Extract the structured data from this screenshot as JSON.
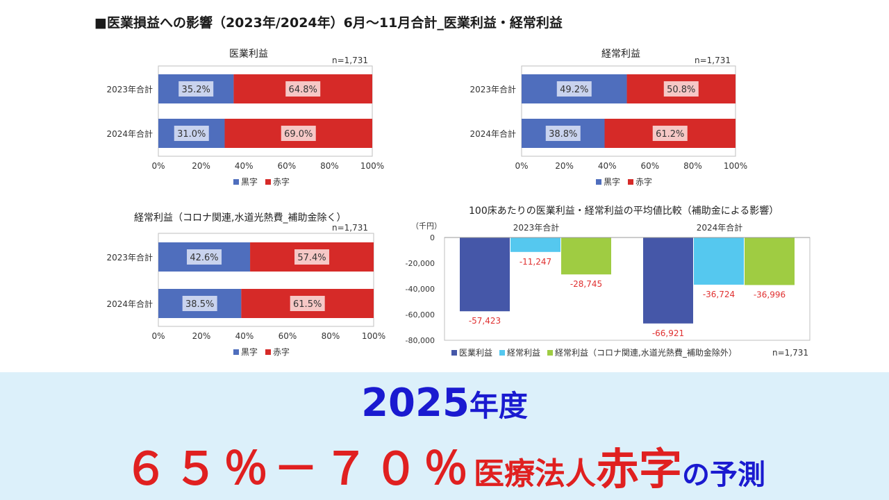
{
  "header": {
    "title": "■医業損益への影響（2023年/2024年）6月～11月合計_医業利益・経常利益"
  },
  "colors": {
    "black": "#4f6ebd",
    "red": "#d62a28",
    "blue": "#4557a8",
    "cyan": "#55c8ef",
    "green": "#9fcc42",
    "banner_bg": "#dcf0fa"
  },
  "chart_data": [
    {
      "type": "bar",
      "title": "医業利益",
      "note": "n=1,731",
      "categories": [
        "2023年合計",
        "2024年合計"
      ],
      "series": [
        {
          "name": "黒字",
          "values": [
            35.2,
            31.0
          ]
        },
        {
          "name": "赤字",
          "values": [
            64.8,
            69.0
          ]
        }
      ],
      "xticks": [
        "0%",
        "20%",
        "40%",
        "60%",
        "80%",
        "100%"
      ],
      "xlim": [
        0,
        100
      ],
      "legend": "bottom"
    },
    {
      "type": "bar",
      "title": "経常利益",
      "note": "n=1,731",
      "categories": [
        "2023年合計",
        "2024年合計"
      ],
      "series": [
        {
          "name": "黒字",
          "values": [
            49.2,
            38.8
          ]
        },
        {
          "name": "赤字",
          "values": [
            50.8,
            61.2
          ]
        }
      ],
      "xticks": [
        "0%",
        "20%",
        "40%",
        "60%",
        "80%",
        "100%"
      ],
      "xlim": [
        0,
        100
      ],
      "legend": "bottom"
    },
    {
      "type": "bar",
      "title": "経常利益（コロナ関連,水道光熱費_補助金除く）",
      "note": "n=1,731",
      "categories": [
        "2023年合計",
        "2024年合計"
      ],
      "series": [
        {
          "name": "黒字",
          "values": [
            42.6,
            38.5
          ]
        },
        {
          "name": "赤字",
          "values": [
            57.4,
            61.5
          ]
        }
      ],
      "xticks": [
        "0%",
        "20%",
        "40%",
        "60%",
        "80%",
        "100%"
      ],
      "xlim": [
        0,
        100
      ],
      "legend": "bottom"
    },
    {
      "type": "bar",
      "title": "100床あたりの医業利益・経常利益の平均値比較（補助金による影響）",
      "unit": "（千円）",
      "note": "n=1,731",
      "categories": [
        "2023年合計",
        "2024年合計"
      ],
      "series": [
        {
          "name": "医業利益",
          "values": [
            -57423,
            -66921
          ],
          "labels": [
            "-57,423",
            "-66,921"
          ]
        },
        {
          "name": "経常利益",
          "values": [
            -11247,
            -36724
          ],
          "labels": [
            "-11,247",
            "-36,724"
          ]
        },
        {
          "name": "経常利益（コロナ関連,水道光熱費_補助金除外）",
          "values": [
            -28745,
            -36996
          ],
          "labels": [
            "-28,745",
            "-36,996"
          ]
        }
      ],
      "yticks": [
        "0",
        "-20,000",
        "-40,000",
        "-60,000",
        "-80,000"
      ],
      "ylim": [
        -80000,
        0
      ],
      "legend": "bottom"
    }
  ],
  "banner": {
    "year": "2025",
    "year_suffix": "年度",
    "percent": "６５％－７０％",
    "org": "医療法人",
    "red_word": "赤字",
    "forecast": "の予測"
  }
}
